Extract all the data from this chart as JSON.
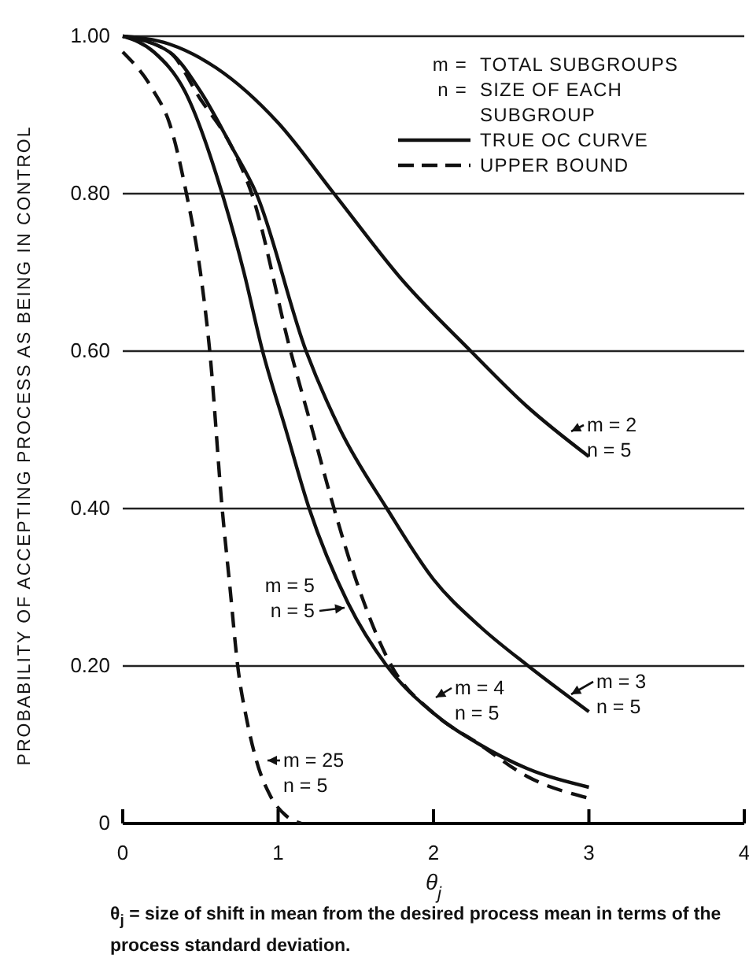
{
  "chart_data": {
    "type": "line",
    "xlabel": "θ$_{j}$",
    "ylabel": "PROBABILITY OF ACCEPTING PROCESS AS BEING IN CONTROL",
    "xlim": [
      0,
      4
    ],
    "xticks": [
      0,
      1,
      2,
      3,
      4
    ],
    "ylim": [
      0,
      1.0
    ],
    "yticks": [
      0,
      {
        "value": 0.2,
        "label": "0.20"
      },
      {
        "value": 0.4,
        "label": "0.40"
      },
      {
        "value": 0.6,
        "label": "0.60"
      },
      {
        "value": 0.8,
        "label": "0.80"
      },
      {
        "value": 1.0,
        "label": "1.00"
      }
    ],
    "grid": "y",
    "marker": "none",
    "series": [
      {
        "color": "#111111",
        "line_style": "solid",
        "x": [
          0,
          0.3,
          0.6,
          1.0,
          1.36,
          1.8,
          2.24,
          2.6,
          3
        ],
        "values": [
          1.0,
          0.99,
          0.96,
          0.89,
          0.8,
          0.69,
          0.6,
          0.53,
          0.466
        ]
      },
      {
        "color": "#111111",
        "line_style": "solid",
        "x": [
          0,
          0.3,
          0.5,
          0.7,
          0.86,
          1.18,
          1.4,
          1.7,
          2.0,
          2.3,
          2.61,
          3
        ],
        "values": [
          1.0,
          0.98,
          0.93,
          0.86,
          0.8,
          0.6,
          0.5,
          0.4,
          0.31,
          0.25,
          0.2,
          0.142
        ]
      },
      {
        "color": "#111111",
        "line_style": "dashed",
        "x": [
          0,
          0.3,
          0.5,
          0.7,
          0.83,
          1.08,
          1.22,
          1.36,
          1.5,
          1.73,
          2.0,
          2.3,
          2.6,
          3
        ],
        "values": [
          1.0,
          0.98,
          0.92,
          0.86,
          0.8,
          0.6,
          0.5,
          0.4,
          0.31,
          0.2,
          0.14,
          0.1,
          0.06,
          0.032
        ]
      },
      {
        "color": "#111111",
        "line_style": "solid",
        "x": [
          0,
          0.2,
          0.4,
          0.64,
          0.78,
          0.9,
          1.05,
          1.2,
          1.45,
          1.7,
          2.0,
          2.3,
          2.6,
          3
        ],
        "values": [
          1.0,
          0.98,
          0.93,
          0.8,
          0.7,
          0.6,
          0.5,
          0.4,
          0.28,
          0.2,
          0.14,
          0.1,
          0.07,
          0.046
        ]
      },
      {
        "color": "#111111",
        "line_style": "dashed",
        "x": [
          0,
          0.2,
          0.3,
          0.41,
          0.5,
          0.56,
          0.64,
          0.69,
          0.74,
          0.8,
          0.86,
          0.95,
          1.05,
          1.15
        ],
        "values": [
          0.98,
          0.93,
          0.89,
          0.8,
          0.7,
          0.6,
          0.4,
          0.3,
          0.2,
          0.13,
          0.08,
          0.035,
          0.01,
          0
        ]
      }
    ],
    "annotations": [
      "m =",
      "TOTAL SUBGROUPS",
      "n =",
      "SIZE OF EACH\nSUBGROUP",
      "TRUE OC CURVE",
      "UPPER BOUND",
      "m = 2\nn = 5",
      "m = 3\nn = 5",
      "m = 4\nn = 5",
      "m = 5\nn = 5",
      "m = 25\nn = 5",
      "θ$_{j}$ = size of shift in mean from the desired process mean in terms of the process standard deviation."
    ]
  }
}
